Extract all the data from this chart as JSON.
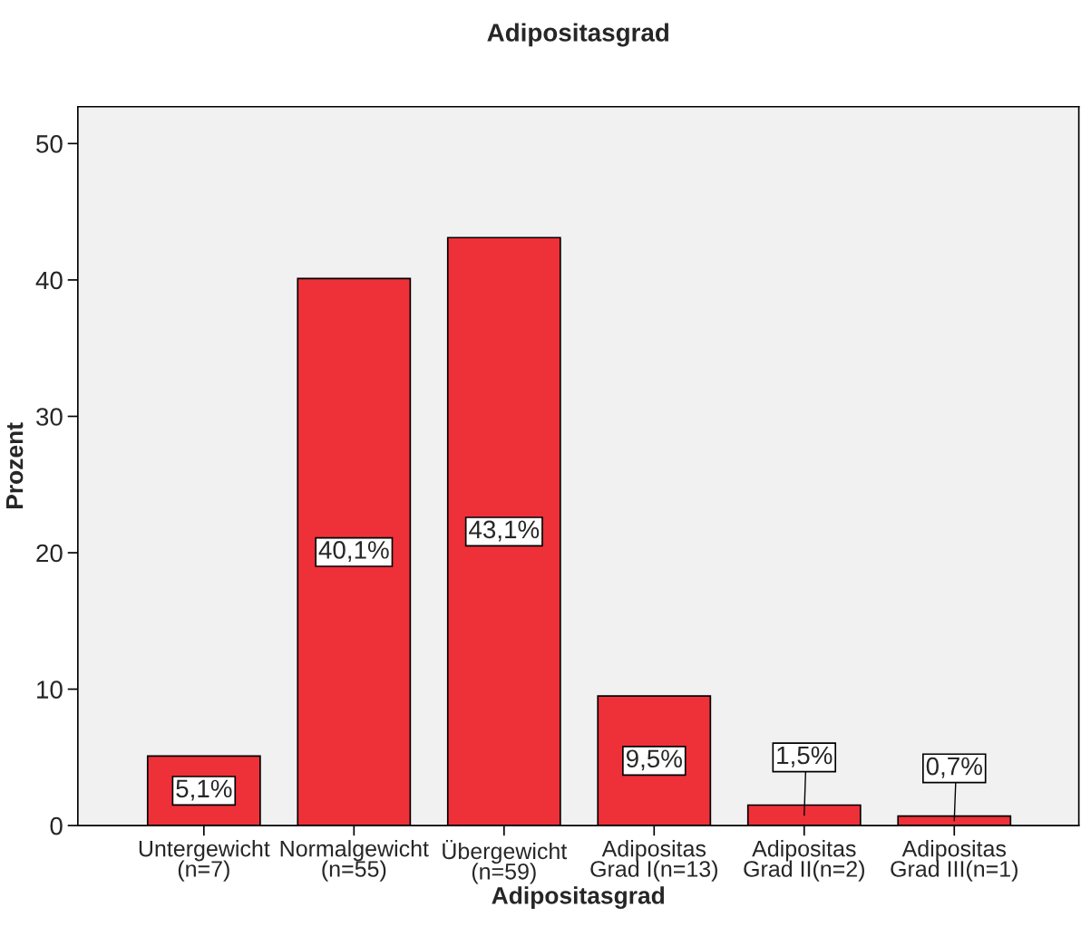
{
  "chart_data": {
    "type": "bar",
    "title": "Adipositasgrad",
    "xlabel": "Adipositasgrad",
    "ylabel": "Prozent",
    "categories": [
      "Untergewicht\n(n=7)",
      "Normalgewicht\n(n=55)",
      "Übergewicht\n(n=59)",
      "Adipositas\nGrad I(n=13)",
      "Adipositas\nGrad II(n=2)",
      "Adipositas\nGrad III(n=1)"
    ],
    "values": [
      5.1,
      40.1,
      43.1,
      9.5,
      1.5,
      0.7
    ],
    "value_labels": [
      "5,1%",
      "40,1%",
      "43,1%",
      "9,5%",
      "1,5%",
      "0,7%"
    ],
    "color": "#ee3039",
    "ylim": [
      0,
      52.7
    ],
    "yticks": [
      0,
      10,
      20,
      30,
      40,
      50
    ],
    "grid": false,
    "legend": false
  }
}
